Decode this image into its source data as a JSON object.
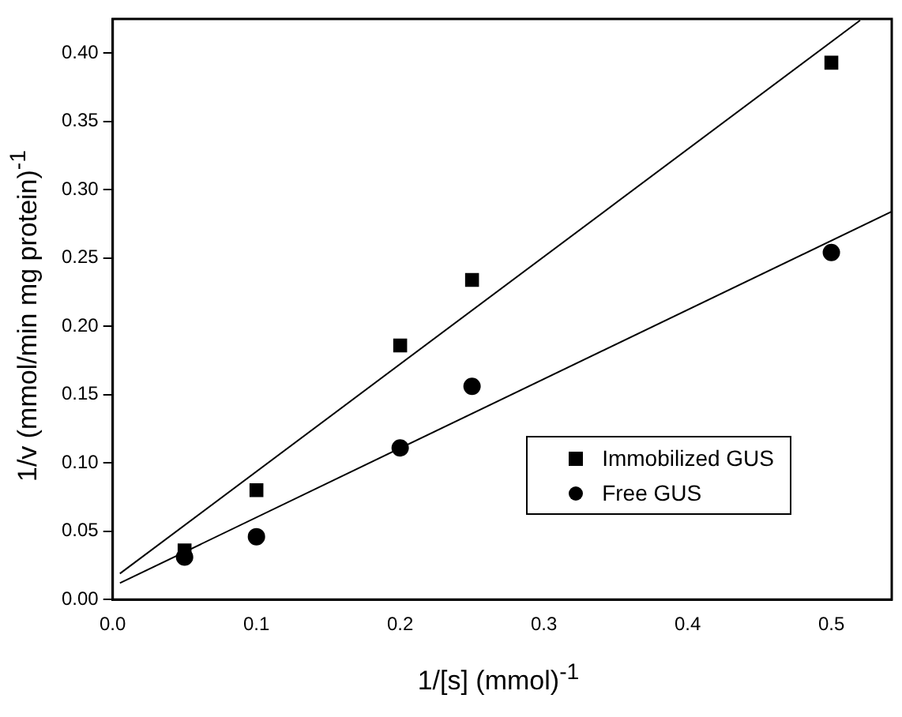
{
  "chart_data": {
    "type": "scatter",
    "xlabel": "1/[s] (mmol)$^{-1}$",
    "ylabel": "1/v (mmol/min mg protein)$^{-1}$",
    "xlim": [
      0,
      0.542
    ],
    "xticks": [
      {
        "value": 0,
        "label": "0.0"
      },
      0.1,
      0.2,
      0.3,
      0.4,
      0.5
    ],
    "ylim": [
      0,
      0.425
    ],
    "yticks": [
      {
        "value": 0,
        "label": "0.00"
      },
      0.05,
      {
        "value": 0.1,
        "label": "0.10"
      },
      0.15,
      {
        "value": 0.2,
        "label": "0.20"
      },
      0.25,
      {
        "value": 0.3,
        "label": "0.30"
      },
      0.35,
      {
        "value": 0.4,
        "label": "0.40"
      }
    ],
    "grid": false,
    "legend": "bottom right",
    "series": [
      {
        "name": "Immobilized GUS",
        "marker": "square",
        "color": "#000000",
        "x": [
          0.05,
          0.1,
          0.2,
          0.25,
          0.5
        ],
        "values": [
          0.036,
          0.08,
          0.186,
          0.234,
          0.393
        ]
      },
      {
        "name": "Free GUS",
        "marker": "circle",
        "color": "#000000",
        "x": [
          0.05,
          0.1,
          0.2,
          0.25,
          0.5
        ],
        "values": [
          0.031,
          0.046,
          0.111,
          0.156,
          0.254
        ]
      },
      {
        "type": "line",
        "marker": "none",
        "color": "#000000",
        "x": [
          0.005,
          0.52
        ],
        "values": [
          0.019,
          0.424
        ]
      },
      {
        "type": "line",
        "marker": "none",
        "color": "#000000",
        "x": [
          0.005,
          0.542
        ],
        "values": [
          0.012,
          0.284
        ]
      }
    ]
  }
}
